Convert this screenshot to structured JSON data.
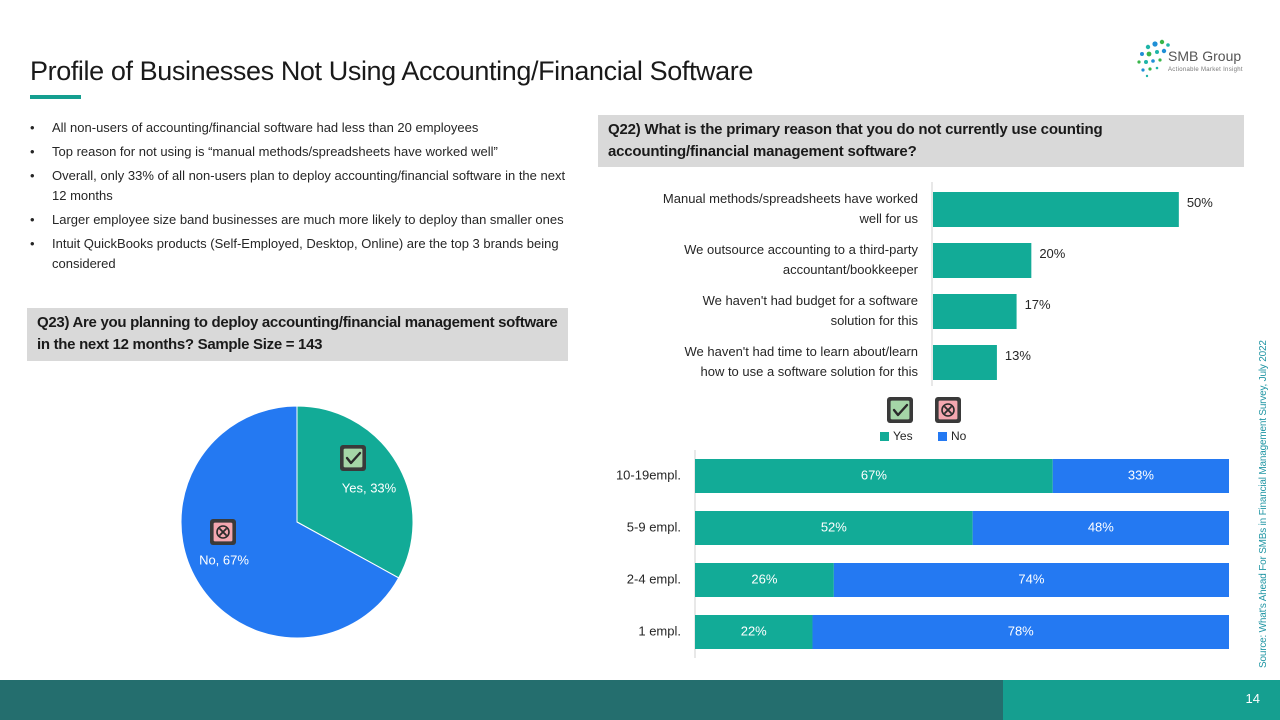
{
  "colors": {
    "teal": "#12ab97",
    "blue": "#2479f2",
    "footer_dark": "#246e6e",
    "footer_light": "#159f90",
    "qbox_bg": "#d9d9d9",
    "check_bg": "#a5d6a7",
    "cross_bg": "#f4a7b0",
    "source_text": "#2196a4"
  },
  "header": {
    "title": "Profile of Businesses Not Using Accounting/Financial Software"
  },
  "logo": {
    "name": "SMB Group",
    "tagline": "Actionable Market Insight"
  },
  "bullets": [
    "All non-users of accounting/financial software had less than 20 employees",
    "Top reason for not using is “manual methods/spreadsheets have worked well”",
    "Overall, only 33% of all non-users plan to deploy accounting/financial software in the next 12 months",
    "Larger employee size band businesses are much more likely to deploy than smaller ones",
    "Intuit QuickBooks products (Self-Employed, Desktop, Online) are the top 3 brands being considered"
  ],
  "q23": {
    "question": "Q23) Are you planning to deploy accounting/financial management software in the next 12 months? Sample Size = 143"
  },
  "q22": {
    "question": "Q22) What is the primary reason that you do not currently use counting accounting/financial management software?"
  },
  "source": "Source: What's Ahead For SMBs in Financial Management Survey, July 2022",
  "page_number": "14",
  "legend": {
    "yes": "Yes",
    "no": "No"
  },
  "chart_data": [
    {
      "type": "pie",
      "title": "",
      "slices": [
        {
          "label": "Yes",
          "value": 33,
          "display": "Yes, 33%",
          "color": "#12ab97",
          "icon": "check-icon"
        },
        {
          "label": "No",
          "value": 67,
          "display": "No, 67%",
          "color": "#2479f2",
          "icon": "cross-icon"
        }
      ]
    },
    {
      "type": "bar",
      "orientation": "horizontal",
      "title": "",
      "categories": [
        [
          "Manual methods/spreadsheets have worked",
          "well for us"
        ],
        [
          "We outsource accounting to a third-party",
          "accountant/bookkeeper"
        ],
        [
          "We haven't had budget for a software",
          "solution for this"
        ],
        [
          "We haven't had time to learn about/learn",
          "how to use a software solution for this"
        ]
      ],
      "values": [
        50,
        20,
        17,
        13
      ],
      "value_labels": [
        "50%",
        "20%",
        "17%",
        "13%"
      ],
      "unit": "%",
      "xlim": [
        0,
        60
      ],
      "grid": false,
      "color": "#12ab97"
    },
    {
      "type": "bar",
      "orientation": "horizontal",
      "stacked": true,
      "title": "",
      "categories": [
        "10-19empl.",
        "5-9 empl.",
        "2-4 empl.",
        "1 empl."
      ],
      "series": [
        {
          "name": "Yes",
          "values": [
            67,
            52,
            26,
            22
          ],
          "labels": [
            "67%",
            "52%",
            "26%",
            "22%"
          ],
          "color": "#12ab97"
        },
        {
          "name": "No",
          "values": [
            33,
            48,
            74,
            78
          ],
          "labels": [
            "33%",
            "48%",
            "74%",
            "78%"
          ],
          "color": "#2479f2"
        }
      ],
      "xlim": [
        0,
        100
      ],
      "legend": "top",
      "grid": false
    }
  ]
}
